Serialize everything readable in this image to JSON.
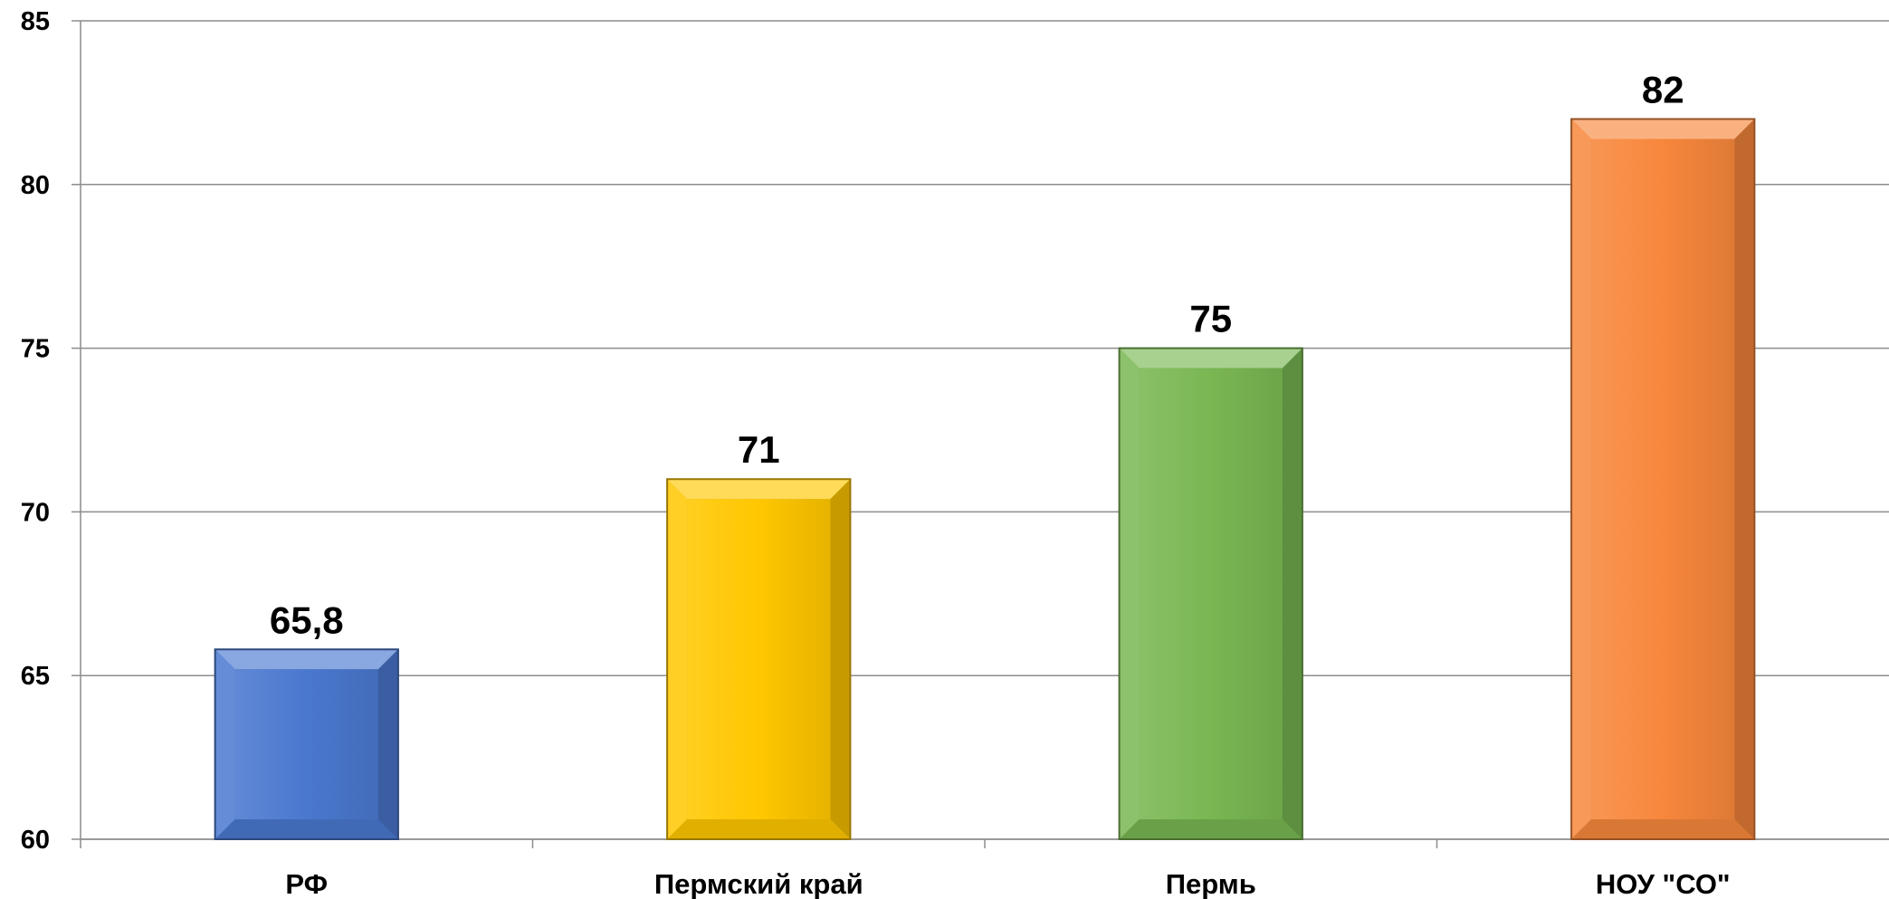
{
  "chart_data": {
    "type": "bar",
    "categories": [
      "РФ",
      "Пермский край",
      "Пермь",
      "НОУ \"СО\""
    ],
    "values": [
      65.8,
      71,
      75,
      82
    ],
    "value_labels": [
      "65,8",
      "71",
      "75",
      "82"
    ],
    "colors": [
      "#4a78cf",
      "#ffc700",
      "#79b752",
      "#f7873c"
    ],
    "title": "",
    "xlabel": "",
    "ylabel": "",
    "ylim": [
      60,
      85
    ],
    "yticks": [
      60,
      65,
      70,
      75,
      80,
      85
    ],
    "grid": true,
    "legend": "none"
  }
}
